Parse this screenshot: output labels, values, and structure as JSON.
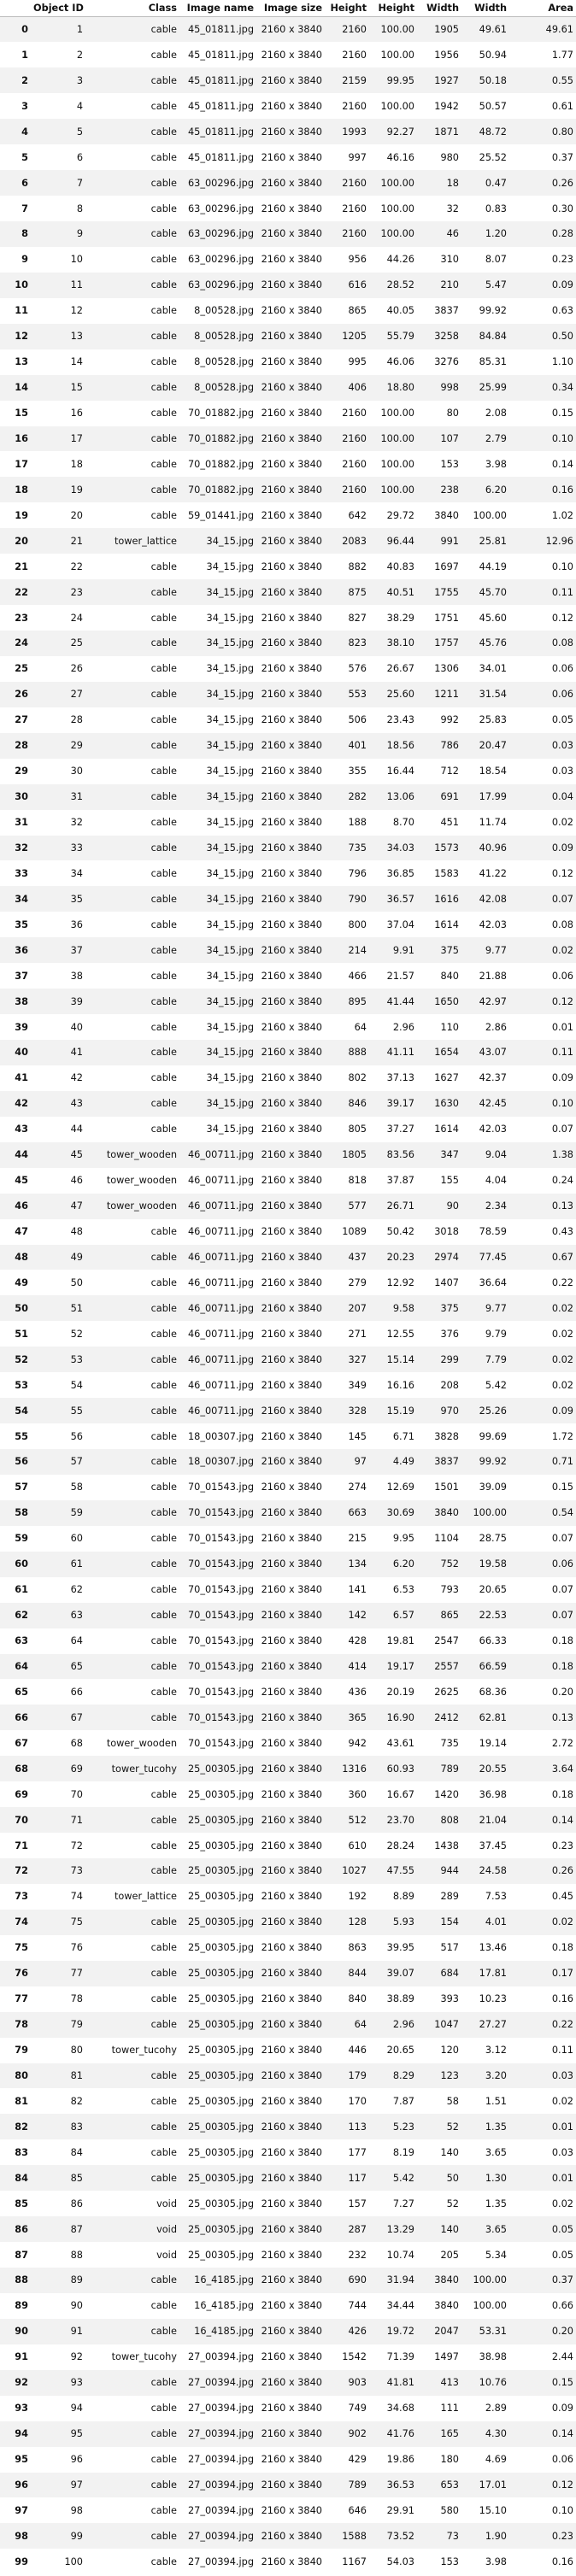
{
  "table": {
    "columns": [
      "",
      "Object ID",
      "Class",
      "Image name",
      "Image size",
      "Height",
      "Height %",
      "Width",
      "Width %",
      "Area %"
    ],
    "columns_visible": [
      "",
      "Object ID",
      "Class",
      "Image name",
      "Image size",
      "Height",
      "Height",
      "Width",
      "Width",
      "Area"
    ],
    "rows": [
      [
        "0",
        "1",
        "cable",
        "45_01811.jpg",
        "2160 x 3840",
        "2160",
        "100.00",
        "1905",
        "49.61",
        "49.61"
      ],
      [
        "1",
        "2",
        "cable",
        "45_01811.jpg",
        "2160 x 3840",
        "2160",
        "100.00",
        "1956",
        "50.94",
        "1.77"
      ],
      [
        "2",
        "3",
        "cable",
        "45_01811.jpg",
        "2160 x 3840",
        "2159",
        "99.95",
        "1927",
        "50.18",
        "0.55"
      ],
      [
        "3",
        "4",
        "cable",
        "45_01811.jpg",
        "2160 x 3840",
        "2160",
        "100.00",
        "1942",
        "50.57",
        "0.61"
      ],
      [
        "4",
        "5",
        "cable",
        "45_01811.jpg",
        "2160 x 3840",
        "1993",
        "92.27",
        "1871",
        "48.72",
        "0.80"
      ],
      [
        "5",
        "6",
        "cable",
        "45_01811.jpg",
        "2160 x 3840",
        "997",
        "46.16",
        "980",
        "25.52",
        "0.37"
      ],
      [
        "6",
        "7",
        "cable",
        "63_00296.jpg",
        "2160 x 3840",
        "2160",
        "100.00",
        "18",
        "0.47",
        "0.26"
      ],
      [
        "7",
        "8",
        "cable",
        "63_00296.jpg",
        "2160 x 3840",
        "2160",
        "100.00",
        "32",
        "0.83",
        "0.30"
      ],
      [
        "8",
        "9",
        "cable",
        "63_00296.jpg",
        "2160 x 3840",
        "2160",
        "100.00",
        "46",
        "1.20",
        "0.28"
      ],
      [
        "9",
        "10",
        "cable",
        "63_00296.jpg",
        "2160 x 3840",
        "956",
        "44.26",
        "310",
        "8.07",
        "0.23"
      ],
      [
        "10",
        "11",
        "cable",
        "63_00296.jpg",
        "2160 x 3840",
        "616",
        "28.52",
        "210",
        "5.47",
        "0.09"
      ],
      [
        "11",
        "12",
        "cable",
        "8_00528.jpg",
        "2160 x 3840",
        "865",
        "40.05",
        "3837",
        "99.92",
        "0.63"
      ],
      [
        "12",
        "13",
        "cable",
        "8_00528.jpg",
        "2160 x 3840",
        "1205",
        "55.79",
        "3258",
        "84.84",
        "0.50"
      ],
      [
        "13",
        "14",
        "cable",
        "8_00528.jpg",
        "2160 x 3840",
        "995",
        "46.06",
        "3276",
        "85.31",
        "1.10"
      ],
      [
        "14",
        "15",
        "cable",
        "8_00528.jpg",
        "2160 x 3840",
        "406",
        "18.80",
        "998",
        "25.99",
        "0.34"
      ],
      [
        "15",
        "16",
        "cable",
        "70_01882.jpg",
        "2160 x 3840",
        "2160",
        "100.00",
        "80",
        "2.08",
        "0.15"
      ],
      [
        "16",
        "17",
        "cable",
        "70_01882.jpg",
        "2160 x 3840",
        "2160",
        "100.00",
        "107",
        "2.79",
        "0.10"
      ],
      [
        "17",
        "18",
        "cable",
        "70_01882.jpg",
        "2160 x 3840",
        "2160",
        "100.00",
        "153",
        "3.98",
        "0.14"
      ],
      [
        "18",
        "19",
        "cable",
        "70_01882.jpg",
        "2160 x 3840",
        "2160",
        "100.00",
        "238",
        "6.20",
        "0.16"
      ],
      [
        "19",
        "20",
        "cable",
        "59_01441.jpg",
        "2160 x 3840",
        "642",
        "29.72",
        "3840",
        "100.00",
        "1.02"
      ],
      [
        "20",
        "21",
        "tower_lattice",
        "34_15.jpg",
        "2160 x 3840",
        "2083",
        "96.44",
        "991",
        "25.81",
        "12.96"
      ],
      [
        "21",
        "22",
        "cable",
        "34_15.jpg",
        "2160 x 3840",
        "882",
        "40.83",
        "1697",
        "44.19",
        "0.10"
      ],
      [
        "22",
        "23",
        "cable",
        "34_15.jpg",
        "2160 x 3840",
        "875",
        "40.51",
        "1755",
        "45.70",
        "0.11"
      ],
      [
        "23",
        "24",
        "cable",
        "34_15.jpg",
        "2160 x 3840",
        "827",
        "38.29",
        "1751",
        "45.60",
        "0.12"
      ],
      [
        "24",
        "25",
        "cable",
        "34_15.jpg",
        "2160 x 3840",
        "823",
        "38.10",
        "1757",
        "45.76",
        "0.08"
      ],
      [
        "25",
        "26",
        "cable",
        "34_15.jpg",
        "2160 x 3840",
        "576",
        "26.67",
        "1306",
        "34.01",
        "0.06"
      ],
      [
        "26",
        "27",
        "cable",
        "34_15.jpg",
        "2160 x 3840",
        "553",
        "25.60",
        "1211",
        "31.54",
        "0.06"
      ],
      [
        "27",
        "28",
        "cable",
        "34_15.jpg",
        "2160 x 3840",
        "506",
        "23.43",
        "992",
        "25.83",
        "0.05"
      ],
      [
        "28",
        "29",
        "cable",
        "34_15.jpg",
        "2160 x 3840",
        "401",
        "18.56",
        "786",
        "20.47",
        "0.03"
      ],
      [
        "29",
        "30",
        "cable",
        "34_15.jpg",
        "2160 x 3840",
        "355",
        "16.44",
        "712",
        "18.54",
        "0.03"
      ],
      [
        "30",
        "31",
        "cable",
        "34_15.jpg",
        "2160 x 3840",
        "282",
        "13.06",
        "691",
        "17.99",
        "0.04"
      ],
      [
        "31",
        "32",
        "cable",
        "34_15.jpg",
        "2160 x 3840",
        "188",
        "8.70",
        "451",
        "11.74",
        "0.02"
      ],
      [
        "32",
        "33",
        "cable",
        "34_15.jpg",
        "2160 x 3840",
        "735",
        "34.03",
        "1573",
        "40.96",
        "0.09"
      ],
      [
        "33",
        "34",
        "cable",
        "34_15.jpg",
        "2160 x 3840",
        "796",
        "36.85",
        "1583",
        "41.22",
        "0.12"
      ],
      [
        "34",
        "35",
        "cable",
        "34_15.jpg",
        "2160 x 3840",
        "790",
        "36.57",
        "1616",
        "42.08",
        "0.07"
      ],
      [
        "35",
        "36",
        "cable",
        "34_15.jpg",
        "2160 x 3840",
        "800",
        "37.04",
        "1614",
        "42.03",
        "0.08"
      ],
      [
        "36",
        "37",
        "cable",
        "34_15.jpg",
        "2160 x 3840",
        "214",
        "9.91",
        "375",
        "9.77",
        "0.02"
      ],
      [
        "37",
        "38",
        "cable",
        "34_15.jpg",
        "2160 x 3840",
        "466",
        "21.57",
        "840",
        "21.88",
        "0.06"
      ],
      [
        "38",
        "39",
        "cable",
        "34_15.jpg",
        "2160 x 3840",
        "895",
        "41.44",
        "1650",
        "42.97",
        "0.12"
      ],
      [
        "39",
        "40",
        "cable",
        "34_15.jpg",
        "2160 x 3840",
        "64",
        "2.96",
        "110",
        "2.86",
        "0.01"
      ],
      [
        "40",
        "41",
        "cable",
        "34_15.jpg",
        "2160 x 3840",
        "888",
        "41.11",
        "1654",
        "43.07",
        "0.11"
      ],
      [
        "41",
        "42",
        "cable",
        "34_15.jpg",
        "2160 x 3840",
        "802",
        "37.13",
        "1627",
        "42.37",
        "0.09"
      ],
      [
        "42",
        "43",
        "cable",
        "34_15.jpg",
        "2160 x 3840",
        "846",
        "39.17",
        "1630",
        "42.45",
        "0.10"
      ],
      [
        "43",
        "44",
        "cable",
        "34_15.jpg",
        "2160 x 3840",
        "805",
        "37.27",
        "1614",
        "42.03",
        "0.07"
      ],
      [
        "44",
        "45",
        "tower_wooden",
        "46_00711.jpg",
        "2160 x 3840",
        "1805",
        "83.56",
        "347",
        "9.04",
        "1.38"
      ],
      [
        "45",
        "46",
        "tower_wooden",
        "46_00711.jpg",
        "2160 x 3840",
        "818",
        "37.87",
        "155",
        "4.04",
        "0.24"
      ],
      [
        "46",
        "47",
        "tower_wooden",
        "46_00711.jpg",
        "2160 x 3840",
        "577",
        "26.71",
        "90",
        "2.34",
        "0.13"
      ],
      [
        "47",
        "48",
        "cable",
        "46_00711.jpg",
        "2160 x 3840",
        "1089",
        "50.42",
        "3018",
        "78.59",
        "0.43"
      ],
      [
        "48",
        "49",
        "cable",
        "46_00711.jpg",
        "2160 x 3840",
        "437",
        "20.23",
        "2974",
        "77.45",
        "0.67"
      ],
      [
        "49",
        "50",
        "cable",
        "46_00711.jpg",
        "2160 x 3840",
        "279",
        "12.92",
        "1407",
        "36.64",
        "0.22"
      ],
      [
        "50",
        "51",
        "cable",
        "46_00711.jpg",
        "2160 x 3840",
        "207",
        "9.58",
        "375",
        "9.77",
        "0.02"
      ],
      [
        "51",
        "52",
        "cable",
        "46_00711.jpg",
        "2160 x 3840",
        "271",
        "12.55",
        "376",
        "9.79",
        "0.02"
      ],
      [
        "52",
        "53",
        "cable",
        "46_00711.jpg",
        "2160 x 3840",
        "327",
        "15.14",
        "299",
        "7.79",
        "0.02"
      ],
      [
        "53",
        "54",
        "cable",
        "46_00711.jpg",
        "2160 x 3840",
        "349",
        "16.16",
        "208",
        "5.42",
        "0.02"
      ],
      [
        "54",
        "55",
        "cable",
        "46_00711.jpg",
        "2160 x 3840",
        "328",
        "15.19",
        "970",
        "25.26",
        "0.09"
      ],
      [
        "55",
        "56",
        "cable",
        "18_00307.jpg",
        "2160 x 3840",
        "145",
        "6.71",
        "3828",
        "99.69",
        "1.72"
      ],
      [
        "56",
        "57",
        "cable",
        "18_00307.jpg",
        "2160 x 3840",
        "97",
        "4.49",
        "3837",
        "99.92",
        "0.71"
      ],
      [
        "57",
        "58",
        "cable",
        "70_01543.jpg",
        "2160 x 3840",
        "274",
        "12.69",
        "1501",
        "39.09",
        "0.15"
      ],
      [
        "58",
        "59",
        "cable",
        "70_01543.jpg",
        "2160 x 3840",
        "663",
        "30.69",
        "3840",
        "100.00",
        "0.54"
      ],
      [
        "59",
        "60",
        "cable",
        "70_01543.jpg",
        "2160 x 3840",
        "215",
        "9.95",
        "1104",
        "28.75",
        "0.07"
      ],
      [
        "60",
        "61",
        "cable",
        "70_01543.jpg",
        "2160 x 3840",
        "134",
        "6.20",
        "752",
        "19.58",
        "0.06"
      ],
      [
        "61",
        "62",
        "cable",
        "70_01543.jpg",
        "2160 x 3840",
        "141",
        "6.53",
        "793",
        "20.65",
        "0.07"
      ],
      [
        "62",
        "63",
        "cable",
        "70_01543.jpg",
        "2160 x 3840",
        "142",
        "6.57",
        "865",
        "22.53",
        "0.07"
      ],
      [
        "63",
        "64",
        "cable",
        "70_01543.jpg",
        "2160 x 3840",
        "428",
        "19.81",
        "2547",
        "66.33",
        "0.18"
      ],
      [
        "64",
        "65",
        "cable",
        "70_01543.jpg",
        "2160 x 3840",
        "414",
        "19.17",
        "2557",
        "66.59",
        "0.18"
      ],
      [
        "65",
        "66",
        "cable",
        "70_01543.jpg",
        "2160 x 3840",
        "436",
        "20.19",
        "2625",
        "68.36",
        "0.20"
      ],
      [
        "66",
        "67",
        "cable",
        "70_01543.jpg",
        "2160 x 3840",
        "365",
        "16.90",
        "2412",
        "62.81",
        "0.13"
      ],
      [
        "67",
        "68",
        "tower_wooden",
        "70_01543.jpg",
        "2160 x 3840",
        "942",
        "43.61",
        "735",
        "19.14",
        "2.72"
      ],
      [
        "68",
        "69",
        "tower_tucohy",
        "25_00305.jpg",
        "2160 x 3840",
        "1316",
        "60.93",
        "789",
        "20.55",
        "3.64"
      ],
      [
        "69",
        "70",
        "cable",
        "25_00305.jpg",
        "2160 x 3840",
        "360",
        "16.67",
        "1420",
        "36.98",
        "0.18"
      ],
      [
        "70",
        "71",
        "cable",
        "25_00305.jpg",
        "2160 x 3840",
        "512",
        "23.70",
        "808",
        "21.04",
        "0.14"
      ],
      [
        "71",
        "72",
        "cable",
        "25_00305.jpg",
        "2160 x 3840",
        "610",
        "28.24",
        "1438",
        "37.45",
        "0.23"
      ],
      [
        "72",
        "73",
        "cable",
        "25_00305.jpg",
        "2160 x 3840",
        "1027",
        "47.55",
        "944",
        "24.58",
        "0.26"
      ],
      [
        "73",
        "74",
        "tower_lattice",
        "25_00305.jpg",
        "2160 x 3840",
        "192",
        "8.89",
        "289",
        "7.53",
        "0.45"
      ],
      [
        "74",
        "75",
        "cable",
        "25_00305.jpg",
        "2160 x 3840",
        "128",
        "5.93",
        "154",
        "4.01",
        "0.02"
      ],
      [
        "75",
        "76",
        "cable",
        "25_00305.jpg",
        "2160 x 3840",
        "863",
        "39.95",
        "517",
        "13.46",
        "0.18"
      ],
      [
        "76",
        "77",
        "cable",
        "25_00305.jpg",
        "2160 x 3840",
        "844",
        "39.07",
        "684",
        "17.81",
        "0.17"
      ],
      [
        "77",
        "78",
        "cable",
        "25_00305.jpg",
        "2160 x 3840",
        "840",
        "38.89",
        "393",
        "10.23",
        "0.16"
      ],
      [
        "78",
        "79",
        "cable",
        "25_00305.jpg",
        "2160 x 3840",
        "64",
        "2.96",
        "1047",
        "27.27",
        "0.22"
      ],
      [
        "79",
        "80",
        "tower_tucohy",
        "25_00305.jpg",
        "2160 x 3840",
        "446",
        "20.65",
        "120",
        "3.12",
        "0.11"
      ],
      [
        "80",
        "81",
        "cable",
        "25_00305.jpg",
        "2160 x 3840",
        "179",
        "8.29",
        "123",
        "3.20",
        "0.03"
      ],
      [
        "81",
        "82",
        "cable",
        "25_00305.jpg",
        "2160 x 3840",
        "170",
        "7.87",
        "58",
        "1.51",
        "0.02"
      ],
      [
        "82",
        "83",
        "cable",
        "25_00305.jpg",
        "2160 x 3840",
        "113",
        "5.23",
        "52",
        "1.35",
        "0.01"
      ],
      [
        "83",
        "84",
        "cable",
        "25_00305.jpg",
        "2160 x 3840",
        "177",
        "8.19",
        "140",
        "3.65",
        "0.03"
      ],
      [
        "84",
        "85",
        "cable",
        "25_00305.jpg",
        "2160 x 3840",
        "117",
        "5.42",
        "50",
        "1.30",
        "0.01"
      ],
      [
        "85",
        "86",
        "void",
        "25_00305.jpg",
        "2160 x 3840",
        "157",
        "7.27",
        "52",
        "1.35",
        "0.02"
      ],
      [
        "86",
        "87",
        "void",
        "25_00305.jpg",
        "2160 x 3840",
        "287",
        "13.29",
        "140",
        "3.65",
        "0.05"
      ],
      [
        "87",
        "88",
        "void",
        "25_00305.jpg",
        "2160 x 3840",
        "232",
        "10.74",
        "205",
        "5.34",
        "0.05"
      ],
      [
        "88",
        "89",
        "cable",
        "16_4185.jpg",
        "2160 x 3840",
        "690",
        "31.94",
        "3840",
        "100.00",
        "0.37"
      ],
      [
        "89",
        "90",
        "cable",
        "16_4185.jpg",
        "2160 x 3840",
        "744",
        "34.44",
        "3840",
        "100.00",
        "0.66"
      ],
      [
        "90",
        "91",
        "cable",
        "16_4185.jpg",
        "2160 x 3840",
        "426",
        "19.72",
        "2047",
        "53.31",
        "0.20"
      ],
      [
        "91",
        "92",
        "tower_tucohy",
        "27_00394.jpg",
        "2160 x 3840",
        "1542",
        "71.39",
        "1497",
        "38.98",
        "2.44"
      ],
      [
        "92",
        "93",
        "cable",
        "27_00394.jpg",
        "2160 x 3840",
        "903",
        "41.81",
        "413",
        "10.76",
        "0.15"
      ],
      [
        "93",
        "94",
        "cable",
        "27_00394.jpg",
        "2160 x 3840",
        "749",
        "34.68",
        "111",
        "2.89",
        "0.09"
      ],
      [
        "94",
        "95",
        "cable",
        "27_00394.jpg",
        "2160 x 3840",
        "902",
        "41.76",
        "165",
        "4.30",
        "0.14"
      ],
      [
        "95",
        "96",
        "cable",
        "27_00394.jpg",
        "2160 x 3840",
        "429",
        "19.86",
        "180",
        "4.69",
        "0.06"
      ],
      [
        "96",
        "97",
        "cable",
        "27_00394.jpg",
        "2160 x 3840",
        "789",
        "36.53",
        "653",
        "17.01",
        "0.12"
      ],
      [
        "97",
        "98",
        "cable",
        "27_00394.jpg",
        "2160 x 3840",
        "646",
        "29.91",
        "580",
        "15.10",
        "0.10"
      ],
      [
        "98",
        "99",
        "cable",
        "27_00394.jpg",
        "2160 x 3840",
        "1588",
        "73.52",
        "73",
        "1.90",
        "0.23"
      ],
      [
        "99",
        "100",
        "cable",
        "27_00394.jpg",
        "2160 x 3840",
        "1167",
        "54.03",
        "153",
        "3.98",
        "0.16"
      ]
    ]
  }
}
